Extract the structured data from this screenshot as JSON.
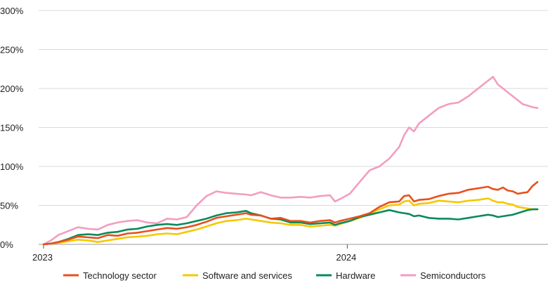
{
  "chart_data": {
    "type": "line",
    "title": "",
    "xlabel": "",
    "ylabel": "",
    "ylim": [
      0,
      300
    ],
    "y_unit": "%",
    "y_ticks": [
      "0%",
      "50%",
      "100%",
      "150%",
      "200%",
      "250%",
      "300%"
    ],
    "x_ticks": [
      {
        "label": "2023",
        "t": 0
      },
      {
        "label": "2024",
        "t": 0.615
      }
    ],
    "grid": true,
    "legend_placement": "bottom",
    "x_domain": [
      0,
      1
    ],
    "series": [
      {
        "name": "Technology sector",
        "color": "#e8501c",
        "points": [
          [
            0,
            0
          ],
          [
            0.015,
            1
          ],
          [
            0.03,
            3
          ],
          [
            0.05,
            6
          ],
          [
            0.07,
            10
          ],
          [
            0.09,
            9
          ],
          [
            0.11,
            8
          ],
          [
            0.13,
            12
          ],
          [
            0.15,
            11
          ],
          [
            0.17,
            14
          ],
          [
            0.19,
            15
          ],
          [
            0.21,
            17
          ],
          [
            0.23,
            19
          ],
          [
            0.25,
            21
          ],
          [
            0.27,
            20
          ],
          [
            0.29,
            22
          ],
          [
            0.31,
            25
          ],
          [
            0.33,
            29
          ],
          [
            0.35,
            34
          ],
          [
            0.37,
            36
          ],
          [
            0.39,
            38
          ],
          [
            0.41,
            40
          ],
          [
            0.42,
            38
          ],
          [
            0.44,
            37
          ],
          [
            0.46,
            33
          ],
          [
            0.48,
            34
          ],
          [
            0.5,
            30
          ],
          [
            0.52,
            30
          ],
          [
            0.54,
            28
          ],
          [
            0.56,
            30
          ],
          [
            0.58,
            31
          ],
          [
            0.59,
            28
          ],
          [
            0.6,
            30
          ],
          [
            0.62,
            33
          ],
          [
            0.64,
            36
          ],
          [
            0.66,
            40
          ],
          [
            0.68,
            48
          ],
          [
            0.7,
            54
          ],
          [
            0.72,
            55
          ],
          [
            0.73,
            62
          ],
          [
            0.74,
            63
          ],
          [
            0.75,
            55
          ],
          [
            0.76,
            57
          ],
          [
            0.78,
            58
          ],
          [
            0.8,
            62
          ],
          [
            0.82,
            65
          ],
          [
            0.84,
            66
          ],
          [
            0.86,
            70
          ],
          [
            0.88,
            72
          ],
          [
            0.9,
            74
          ],
          [
            0.91,
            71
          ],
          [
            0.92,
            70
          ],
          [
            0.93,
            73
          ],
          [
            0.94,
            69
          ],
          [
            0.95,
            68
          ],
          [
            0.96,
            65
          ],
          [
            0.97,
            66
          ],
          [
            0.98,
            67
          ],
          [
            0.99,
            75
          ],
          [
            1.0,
            80
          ]
        ]
      },
      {
        "name": "Software and services",
        "color": "#f5c800",
        "points": [
          [
            0,
            0
          ],
          [
            0.015,
            1
          ],
          [
            0.03,
            2
          ],
          [
            0.05,
            4
          ],
          [
            0.07,
            6
          ],
          [
            0.09,
            5
          ],
          [
            0.11,
            3
          ],
          [
            0.13,
            5
          ],
          [
            0.15,
            7
          ],
          [
            0.17,
            9
          ],
          [
            0.19,
            10
          ],
          [
            0.21,
            11
          ],
          [
            0.23,
            13
          ],
          [
            0.25,
            14
          ],
          [
            0.27,
            13
          ],
          [
            0.29,
            16
          ],
          [
            0.31,
            19
          ],
          [
            0.33,
            23
          ],
          [
            0.35,
            27
          ],
          [
            0.37,
            30
          ],
          [
            0.39,
            31
          ],
          [
            0.41,
            33
          ],
          [
            0.42,
            32
          ],
          [
            0.44,
            30
          ],
          [
            0.46,
            28
          ],
          [
            0.48,
            27
          ],
          [
            0.5,
            25
          ],
          [
            0.52,
            25
          ],
          [
            0.54,
            23
          ],
          [
            0.56,
            24
          ],
          [
            0.58,
            25
          ],
          [
            0.59,
            24
          ],
          [
            0.6,
            26
          ],
          [
            0.62,
            30
          ],
          [
            0.64,
            34
          ],
          [
            0.66,
            39
          ],
          [
            0.68,
            45
          ],
          [
            0.7,
            50
          ],
          [
            0.72,
            51
          ],
          [
            0.73,
            55
          ],
          [
            0.74,
            56
          ],
          [
            0.75,
            50
          ],
          [
            0.76,
            52
          ],
          [
            0.78,
            53
          ],
          [
            0.8,
            56
          ],
          [
            0.82,
            55
          ],
          [
            0.84,
            54
          ],
          [
            0.86,
            56
          ],
          [
            0.88,
            57
          ],
          [
            0.9,
            59
          ],
          [
            0.91,
            56
          ],
          [
            0.92,
            54
          ],
          [
            0.93,
            54
          ],
          [
            0.94,
            52
          ],
          [
            0.95,
            51
          ],
          [
            0.96,
            48
          ],
          [
            0.97,
            47
          ],
          [
            0.98,
            46
          ],
          [
            0.99,
            45
          ],
          [
            1.0,
            45
          ]
        ]
      },
      {
        "name": "Hardware",
        "color": "#0a8a5a",
        "points": [
          [
            0,
            0
          ],
          [
            0.015,
            1
          ],
          [
            0.03,
            3
          ],
          [
            0.05,
            7
          ],
          [
            0.07,
            12
          ],
          [
            0.09,
            13
          ],
          [
            0.11,
            12
          ],
          [
            0.13,
            15
          ],
          [
            0.15,
            16
          ],
          [
            0.17,
            19
          ],
          [
            0.19,
            20
          ],
          [
            0.21,
            23
          ],
          [
            0.23,
            25
          ],
          [
            0.25,
            26
          ],
          [
            0.27,
            25
          ],
          [
            0.29,
            27
          ],
          [
            0.31,
            30
          ],
          [
            0.33,
            33
          ],
          [
            0.35,
            37
          ],
          [
            0.37,
            40
          ],
          [
            0.39,
            41
          ],
          [
            0.41,
            43
          ],
          [
            0.42,
            40
          ],
          [
            0.44,
            37
          ],
          [
            0.46,
            33
          ],
          [
            0.48,
            32
          ],
          [
            0.5,
            28
          ],
          [
            0.52,
            28
          ],
          [
            0.54,
            26
          ],
          [
            0.56,
            27
          ],
          [
            0.58,
            28
          ],
          [
            0.59,
            25
          ],
          [
            0.6,
            27
          ],
          [
            0.62,
            30
          ],
          [
            0.64,
            35
          ],
          [
            0.66,
            38
          ],
          [
            0.68,
            41
          ],
          [
            0.7,
            44
          ],
          [
            0.72,
            41
          ],
          [
            0.73,
            40
          ],
          [
            0.74,
            39
          ],
          [
            0.75,
            36
          ],
          [
            0.76,
            37
          ],
          [
            0.78,
            34
          ],
          [
            0.8,
            33
          ],
          [
            0.82,
            33
          ],
          [
            0.84,
            32
          ],
          [
            0.86,
            34
          ],
          [
            0.88,
            36
          ],
          [
            0.9,
            38
          ],
          [
            0.91,
            37
          ],
          [
            0.92,
            35
          ],
          [
            0.93,
            36
          ],
          [
            0.94,
            37
          ],
          [
            0.95,
            38
          ],
          [
            0.96,
            40
          ],
          [
            0.97,
            42
          ],
          [
            0.98,
            44
          ],
          [
            0.99,
            45
          ],
          [
            1.0,
            45
          ]
        ]
      },
      {
        "name": "Semiconductors",
        "color": "#f29ec0",
        "points": [
          [
            0,
            0
          ],
          [
            0.015,
            5
          ],
          [
            0.03,
            12
          ],
          [
            0.05,
            17
          ],
          [
            0.07,
            22
          ],
          [
            0.09,
            20
          ],
          [
            0.11,
            19
          ],
          [
            0.13,
            25
          ],
          [
            0.15,
            28
          ],
          [
            0.17,
            30
          ],
          [
            0.19,
            31
          ],
          [
            0.21,
            28
          ],
          [
            0.23,
            27
          ],
          [
            0.25,
            33
          ],
          [
            0.27,
            32
          ],
          [
            0.29,
            35
          ],
          [
            0.31,
            50
          ],
          [
            0.33,
            62
          ],
          [
            0.35,
            68
          ],
          [
            0.37,
            66
          ],
          [
            0.39,
            65
          ],
          [
            0.41,
            64
          ],
          [
            0.42,
            63
          ],
          [
            0.44,
            67
          ],
          [
            0.46,
            63
          ],
          [
            0.48,
            60
          ],
          [
            0.5,
            60
          ],
          [
            0.52,
            61
          ],
          [
            0.54,
            60
          ],
          [
            0.56,
            62
          ],
          [
            0.58,
            63
          ],
          [
            0.59,
            55
          ],
          [
            0.6,
            58
          ],
          [
            0.62,
            65
          ],
          [
            0.64,
            80
          ],
          [
            0.66,
            95
          ],
          [
            0.68,
            100
          ],
          [
            0.7,
            110
          ],
          [
            0.72,
            125
          ],
          [
            0.73,
            140
          ],
          [
            0.74,
            150
          ],
          [
            0.75,
            145
          ],
          [
            0.76,
            155
          ],
          [
            0.78,
            165
          ],
          [
            0.8,
            175
          ],
          [
            0.82,
            180
          ],
          [
            0.84,
            182
          ],
          [
            0.86,
            190
          ],
          [
            0.88,
            200
          ],
          [
            0.9,
            210
          ],
          [
            0.91,
            215
          ],
          [
            0.92,
            205
          ],
          [
            0.93,
            200
          ],
          [
            0.94,
            195
          ],
          [
            0.95,
            190
          ],
          [
            0.96,
            185
          ],
          [
            0.97,
            180
          ],
          [
            0.98,
            178
          ],
          [
            0.99,
            176
          ],
          [
            1.0,
            175
          ]
        ]
      }
    ]
  }
}
